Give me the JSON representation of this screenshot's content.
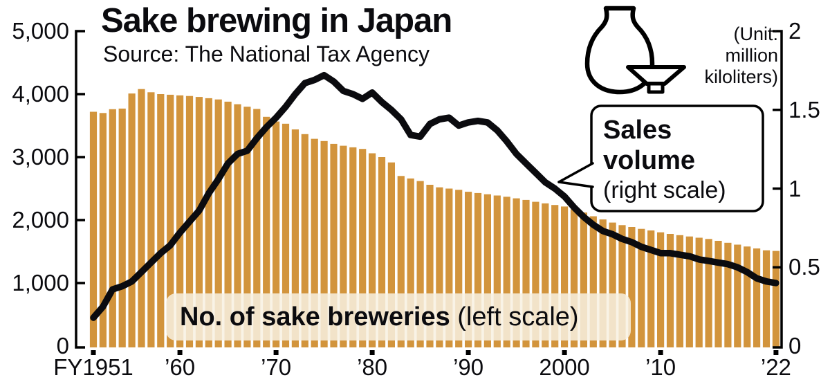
{
  "title": "Sake brewing in Japan",
  "source": "Source: The National Tax Agency",
  "unit_label": "(Unit:\nmillion\nkiloliters)",
  "callout": {
    "line1": "Sales",
    "line2": "volume",
    "line3": "(right scale)"
  },
  "bar_label": {
    "bold": "No. of sake breweries",
    "normal": " (left scale)"
  },
  "colors": {
    "bar": "#D2943C",
    "line": "#0b0b0f",
    "label_bg": "#F8F1E2",
    "background": "#ffffff"
  },
  "left_axis": {
    "tick_labels": [
      "5,000",
      "4,000",
      "3,000",
      "2,000",
      "1,000",
      "0"
    ],
    "tick_values": [
      5000,
      4000,
      3000,
      2000,
      1000,
      0
    ]
  },
  "right_axis": {
    "tick_labels": [
      "2",
      "1.5",
      "1",
      "0.5",
      "0"
    ],
    "tick_values": [
      2,
      1.5,
      1,
      0.5,
      0
    ]
  },
  "x_axis": {
    "tick_labels": [
      "FY1951",
      "’60",
      "’70",
      "’80",
      "’90",
      "2000",
      "’10",
      "’22"
    ],
    "tick_years": [
      1951,
      1960,
      1970,
      1980,
      1990,
      2000,
      2010,
      2022
    ]
  },
  "chart_data": {
    "type": "bar+line",
    "title": "Sake brewing in Japan",
    "x_start_year": 1951,
    "x_end_year": 2022,
    "x": [
      1951,
      1952,
      1953,
      1954,
      1955,
      1956,
      1957,
      1958,
      1959,
      1960,
      1961,
      1962,
      1963,
      1964,
      1965,
      1966,
      1967,
      1968,
      1969,
      1970,
      1971,
      1972,
      1973,
      1974,
      1975,
      1976,
      1977,
      1978,
      1979,
      1980,
      1981,
      1982,
      1983,
      1984,
      1985,
      1986,
      1987,
      1988,
      1989,
      1990,
      1991,
      1992,
      1993,
      1994,
      1995,
      1996,
      1997,
      1998,
      1999,
      2000,
      2001,
      2002,
      2003,
      2004,
      2005,
      2006,
      2007,
      2008,
      2009,
      2010,
      2011,
      2012,
      2013,
      2014,
      2015,
      2016,
      2017,
      2018,
      2019,
      2020,
      2021,
      2022
    ],
    "series": [
      {
        "name": "No. of sake breweries",
        "type": "bar",
        "axis": "left",
        "ylim": [
          0,
          5000
        ],
        "values": [
          3720,
          3700,
          3760,
          3770,
          4010,
          4080,
          4030,
          4000,
          3990,
          3980,
          3970,
          3955,
          3935,
          3915,
          3880,
          3840,
          3800,
          3765,
          3640,
          3565,
          3530,
          3440,
          3365,
          3290,
          3255,
          3210,
          3180,
          3155,
          3130,
          3060,
          3000,
          2915,
          2700,
          2660,
          2620,
          2560,
          2520,
          2500,
          2480,
          2450,
          2430,
          2410,
          2390,
          2370,
          2345,
          2320,
          2290,
          2265,
          2240,
          2215,
          2170,
          2120,
          2060,
          2010,
          1960,
          1920,
          1890,
          1860,
          1835,
          1805,
          1780,
          1760,
          1740,
          1720,
          1700,
          1670,
          1640,
          1610,
          1580,
          1550,
          1520,
          1510
        ]
      },
      {
        "name": "Sales volume",
        "type": "line",
        "axis": "right",
        "ylim": [
          0,
          2
        ],
        "unit": "million kiloliters",
        "values": [
          0.18,
          0.25,
          0.36,
          0.38,
          0.41,
          0.47,
          0.53,
          0.59,
          0.64,
          0.72,
          0.79,
          0.86,
          0.97,
          1.06,
          1.16,
          1.22,
          1.24,
          1.32,
          1.39,
          1.45,
          1.52,
          1.6,
          1.67,
          1.69,
          1.72,
          1.68,
          1.62,
          1.6,
          1.57,
          1.61,
          1.55,
          1.5,
          1.44,
          1.34,
          1.33,
          1.41,
          1.44,
          1.45,
          1.4,
          1.42,
          1.43,
          1.42,
          1.37,
          1.3,
          1.22,
          1.16,
          1.1,
          1.04,
          1.0,
          0.95,
          0.88,
          0.82,
          0.77,
          0.73,
          0.71,
          0.68,
          0.66,
          0.63,
          0.61,
          0.59,
          0.59,
          0.58,
          0.57,
          0.55,
          0.54,
          0.53,
          0.52,
          0.5,
          0.47,
          0.43,
          0.41,
          0.4
        ]
      }
    ],
    "legend_position": "annotations-on-chart",
    "grid": false
  }
}
